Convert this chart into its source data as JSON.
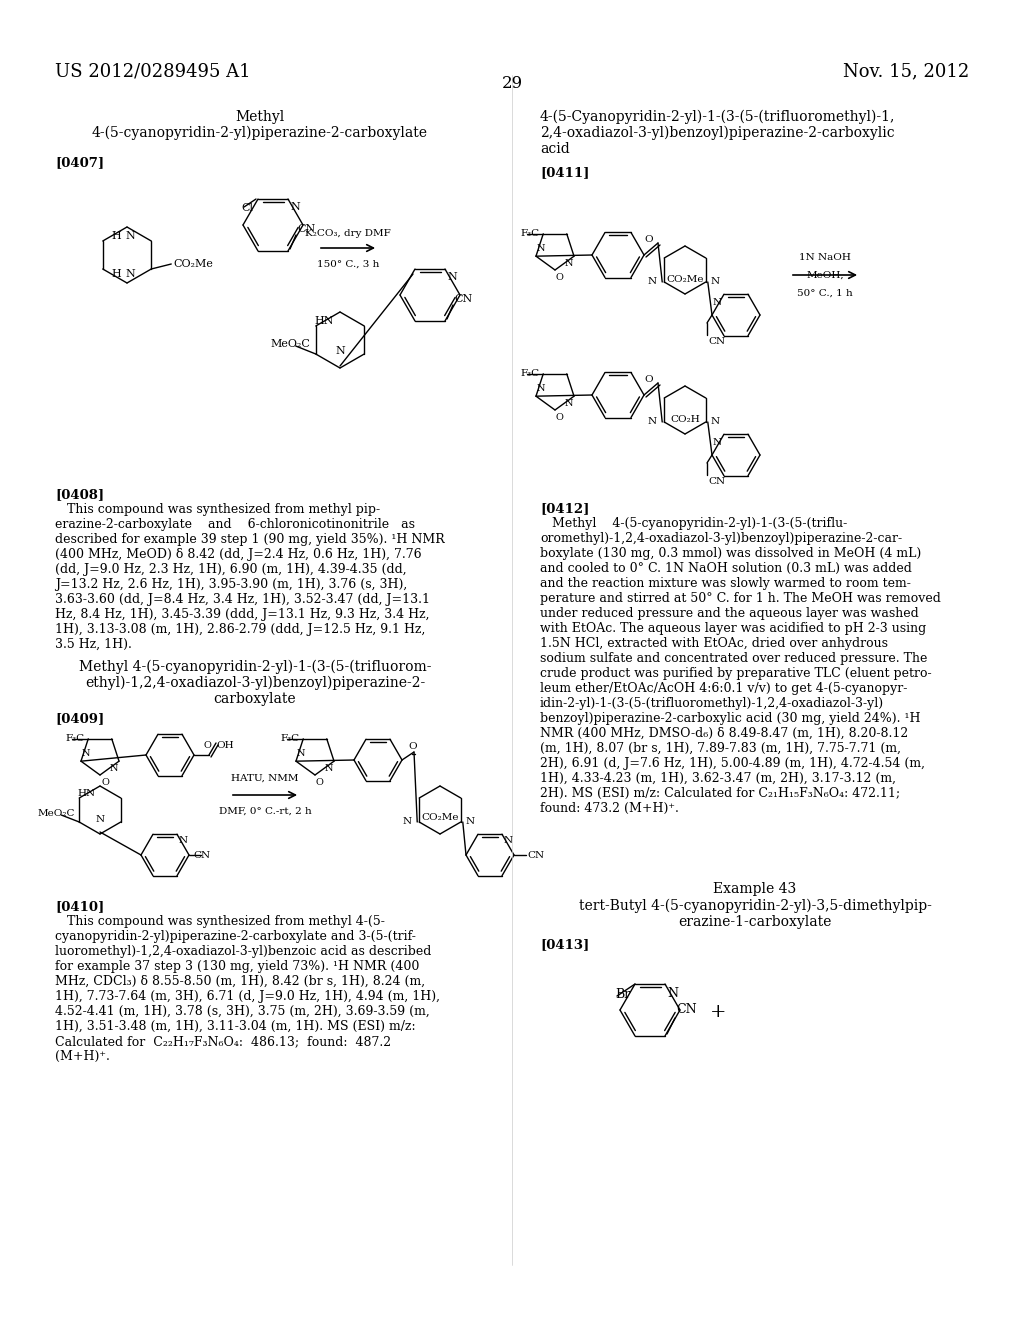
{
  "page_header_left": "US 2012/0289495 A1",
  "page_header_right": "Nov. 15, 2012",
  "page_number": "29",
  "background_color": "#ffffff",
  "lw": 1.0
}
